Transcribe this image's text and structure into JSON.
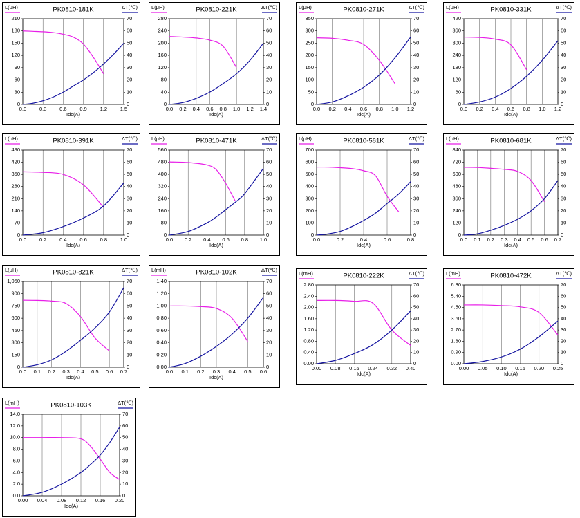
{
  "chart_data": [
    {
      "type": "line",
      "title": "PK0810-181K",
      "xlabel": "Idc(A)",
      "grid": true,
      "x": [
        0,
        0.15,
        0.3,
        0.45,
        0.6,
        0.75,
        0.9,
        1.05,
        1.2,
        1.35,
        1.5
      ],
      "xlim": [
        0,
        1.5
      ],
      "xticks": [
        {
          "value": 0,
          "label": "0.0"
        },
        0.3,
        0.6,
        0.9,
        1.2,
        1.5
      ],
      "ylim": [
        0,
        210
      ],
      "yticks": [
        0,
        30,
        60,
        90,
        120,
        150,
        180,
        210
      ],
      "y2lim": [
        0,
        70
      ],
      "y2ticks": [
        0,
        10,
        20,
        30,
        40,
        50,
        60,
        70
      ],
      "series": [
        {
          "name": "L(μH)",
          "color": "#e81ee8",
          "values": [
            180,
            179,
            178,
            176,
            172,
            165,
            148,
            115,
            75,
            null,
            null
          ]
        },
        {
          "name": "ΔT(℃)",
          "color": "#1414a0",
          "axis": "y2",
          "values": [
            0,
            1,
            3,
            6,
            10,
            15,
            20,
            26,
            33,
            41,
            50
          ]
        }
      ]
    },
    {
      "type": "line",
      "title": "PK0810-221K",
      "xlabel": "Idc(A)",
      "grid": true,
      "x": [
        0,
        0.2,
        0.4,
        0.6,
        0.8,
        1.0,
        1.2,
        1.4
      ],
      "xlim": [
        0,
        1.4
      ],
      "xticks": [
        {
          "value": 0,
          "label": "0.0"
        },
        0.2,
        0.4,
        0.6,
        0.8,
        {
          "value": 1,
          "label": "1.0"
        },
        1.2,
        1.4
      ],
      "ylim": [
        0,
        280
      ],
      "yticks": [
        0,
        40,
        80,
        120,
        160,
        200,
        240,
        280
      ],
      "y2lim": [
        0,
        70
      ],
      "y2ticks": [
        0,
        10,
        20,
        30,
        40,
        50,
        60,
        70
      ],
      "series": [
        {
          "name": "L(μH)",
          "color": "#e81ee8",
          "values": [
            222,
            220,
            217,
            210,
            190,
            120,
            null,
            null
          ]
        },
        {
          "name": "ΔT(℃)",
          "color": "#1414a0",
          "axis": "y2",
          "values": [
            0,
            1.5,
            5,
            10,
            17,
            25,
            36,
            50
          ]
        }
      ]
    },
    {
      "type": "line",
      "title": "PK0810-271K",
      "xlabel": "Idc(A)",
      "grid": true,
      "x": [
        0,
        0.2,
        0.4,
        0.6,
        0.8,
        1.0,
        1.2
      ],
      "xlim": [
        0,
        1.2
      ],
      "xticks": [
        {
          "value": 0,
          "label": "0.0"
        },
        0.2,
        0.4,
        0.6,
        0.8,
        {
          "value": 1,
          "label": "1.0"
        },
        1.2
      ],
      "ylim": [
        0,
        350
      ],
      "yticks": [
        0,
        50,
        100,
        150,
        200,
        250,
        300,
        350
      ],
      "y2lim": [
        0,
        70
      ],
      "y2ticks": [
        0,
        10,
        20,
        30,
        40,
        50,
        60,
        70
      ],
      "series": [
        {
          "name": "L(μH)",
          "color": "#e81ee8",
          "values": [
            272,
            270,
            262,
            245,
            180,
            85,
            null
          ]
        },
        {
          "name": "ΔT(℃)",
          "color": "#1414a0",
          "axis": "y2",
          "values": [
            0,
            2,
            7,
            14,
            24,
            38,
            55
          ]
        }
      ]
    },
    {
      "type": "line",
      "title": "PK0810-331K",
      "xlabel": "Idc(A)",
      "grid": true,
      "x": [
        0,
        0.2,
        0.4,
        0.6,
        0.8,
        1.0,
        1.2
      ],
      "xlim": [
        0,
        1.2
      ],
      "xticks": [
        {
          "value": 0,
          "label": "0.0"
        },
        0.2,
        0.4,
        0.6,
        0.8,
        {
          "value": 1,
          "label": "1.0"
        },
        1.2
      ],
      "ylim": [
        0,
        420
      ],
      "yticks": [
        0,
        60,
        120,
        180,
        240,
        300,
        360,
        420
      ],
      "y2lim": [
        0,
        70
      ],
      "y2ticks": [
        0,
        10,
        20,
        30,
        40,
        50,
        60,
        70
      ],
      "series": [
        {
          "name": "L(μH)",
          "color": "#e81ee8",
          "values": [
            330,
            328,
            320,
            292,
            170,
            null,
            null
          ]
        },
        {
          "name": "ΔT(℃)",
          "color": "#1414a0",
          "axis": "y2",
          "values": [
            0,
            2,
            6,
            13,
            23,
            36,
            52
          ]
        }
      ]
    },
    {
      "type": "line",
      "title": "PK0810-391K",
      "xlabel": "Idc(A)",
      "grid": true,
      "x": [
        0,
        0.2,
        0.4,
        0.6,
        0.8,
        1.0
      ],
      "xlim": [
        0,
        1
      ],
      "xticks": [
        {
          "value": 0,
          "label": "0.0"
        },
        0.2,
        0.4,
        0.6,
        0.8,
        {
          "value": 1,
          "label": "1.0"
        }
      ],
      "ylim": [
        0,
        490
      ],
      "yticks": [
        0,
        70,
        140,
        210,
        280,
        350,
        420,
        490
      ],
      "y2lim": [
        0,
        70
      ],
      "y2ticks": [
        0,
        10,
        20,
        30,
        40,
        50,
        60,
        70
      ],
      "series": [
        {
          "name": "L(μH)",
          "color": "#e81ee8",
          "values": [
            365,
            362,
            350,
            290,
            160,
            null
          ]
        },
        {
          "name": "ΔT(℃)",
          "color": "#1414a0",
          "axis": "y2",
          "values": [
            0,
            2,
            7,
            14,
            24,
            43
          ]
        }
      ]
    },
    {
      "type": "line",
      "title": "PK0810-471K",
      "xlabel": "Idc(A)",
      "grid": true,
      "x": [
        0,
        0.2,
        0.4,
        0.5,
        0.6,
        0.7,
        0.8,
        1.0
      ],
      "xlim": [
        0,
        1
      ],
      "xticks": [
        {
          "value": 0,
          "label": "0.0"
        },
        0.2,
        0.4,
        0.6,
        0.8,
        {
          "value": 1,
          "label": "1.0"
        }
      ],
      "ylim": [
        0,
        560
      ],
      "yticks": [
        0,
        80,
        160,
        240,
        320,
        400,
        480,
        560
      ],
      "y2lim": [
        0,
        70
      ],
      "y2ticks": [
        0,
        10,
        20,
        30,
        40,
        50,
        60,
        70
      ],
      "series": [
        {
          "name": "L(μH)",
          "color": "#e81ee8",
          "values": [
            482,
            478,
            462,
            430,
            340,
            225,
            null,
            null
          ]
        },
        {
          "name": "ΔT(℃)",
          "color": "#1414a0",
          "axis": "y2",
          "values": [
            0,
            3,
            10,
            15,
            21,
            27,
            34,
            55
          ]
        }
      ]
    },
    {
      "type": "line",
      "title": "PK0810-561K",
      "xlabel": "Idc(A)",
      "grid": true,
      "x": [
        0,
        0.1,
        0.2,
        0.3,
        0.4,
        0.5,
        0.6,
        0.7,
        0.8
      ],
      "xlim": [
        0,
        0.8
      ],
      "xticks": [
        {
          "value": 0,
          "label": "0.0"
        },
        0.2,
        0.4,
        0.6,
        0.8
      ],
      "ylim": [
        0,
        700
      ],
      "yticks": [
        0,
        100,
        200,
        300,
        400,
        500,
        600,
        700
      ],
      "y2lim": [
        0,
        70
      ],
      "y2ticks": [
        0,
        10,
        20,
        30,
        40,
        50,
        60,
        70
      ],
      "series": [
        {
          "name": "L(μH)",
          "color": "#e81ee8",
          "values": [
            560,
            560,
            555,
            548,
            530,
            490,
            320,
            190,
            null
          ]
        },
        {
          "name": "ΔT(℃)",
          "color": "#1414a0",
          "axis": "y2",
          "values": [
            0,
            1,
            3,
            7,
            12,
            18,
            26,
            34,
            44
          ]
        }
      ]
    },
    {
      "type": "line",
      "title": "PK0810-681K",
      "xlabel": "Idc(A)",
      "grid": true,
      "x": [
        0,
        0.1,
        0.2,
        0.3,
        0.4,
        0.5,
        0.6,
        0.7
      ],
      "xlim": [
        0,
        0.7
      ],
      "xticks": [
        {
          "value": 0,
          "label": "0.0"
        },
        0.1,
        0.2,
        0.3,
        0.4,
        0.5,
        0.6,
        0.7
      ],
      "ylim": [
        0,
        840
      ],
      "yticks": [
        0,
        120,
        240,
        360,
        480,
        600,
        720,
        840
      ],
      "y2lim": [
        0,
        70
      ],
      "y2ticks": [
        0,
        10,
        20,
        30,
        40,
        50,
        60,
        70
      ],
      "series": [
        {
          "name": "L(μH)",
          "color": "#e81ee8",
          "values": [
            670,
            668,
            660,
            650,
            630,
            540,
            330,
            null
          ]
        },
        {
          "name": "ΔT(℃)",
          "color": "#1414a0",
          "axis": "y2",
          "values": [
            0,
            1,
            4,
            8,
            13,
            20,
            30,
            45
          ]
        }
      ]
    },
    {
      "type": "line",
      "title": "PK0810-821K",
      "xlabel": "Idc(A)",
      "grid": true,
      "x": [
        0,
        0.1,
        0.2,
        0.3,
        0.4,
        0.5,
        0.6,
        0.7
      ],
      "xlim": [
        0,
        0.7
      ],
      "xticks": [
        {
          "value": 0,
          "label": "0.0"
        },
        0.1,
        0.2,
        0.3,
        0.4,
        0.5,
        0.6,
        0.7
      ],
      "ylim": [
        0,
        1050
      ],
      "yticks": [
        0,
        150,
        300,
        450,
        600,
        750,
        900,
        {
          "value": 1050,
          "label": "1,050"
        }
      ],
      "y2lim": [
        0,
        70
      ],
      "y2ticks": [
        0,
        10,
        20,
        30,
        40,
        50,
        60,
        70
      ],
      "series": [
        {
          "name": "L(μH)",
          "color": "#e81ee8",
          "values": [
            820,
            818,
            810,
            780,
            620,
            360,
            200,
            null
          ]
        },
        {
          "name": "ΔT(℃)",
          "color": "#1414a0",
          "axis": "y2",
          "values": [
            0,
            2,
            6,
            13,
            22,
            32,
            45,
            65
          ]
        }
      ]
    },
    {
      "type": "line",
      "title": "PK0810-102K",
      "xlabel": "Idc(A)",
      "grid": true,
      "x": [
        0,
        0.1,
        0.2,
        0.3,
        0.4,
        0.5,
        0.6
      ],
      "xlim": [
        0,
        0.6
      ],
      "xticks": [
        {
          "value": 0,
          "label": "0.0"
        },
        0.1,
        0.2,
        0.3,
        0.4,
        0.5,
        0.6
      ],
      "ylim": [
        0,
        1.4
      ],
      "yticks": [
        {
          "value": 0,
          "label": "0.00"
        },
        {
          "value": 0.2,
          "label": "0.20"
        },
        {
          "value": 0.4,
          "label": "0.40"
        },
        {
          "value": 0.6,
          "label": "0.60"
        },
        {
          "value": 0.8,
          "label": "0.80"
        },
        {
          "value": 1,
          "label": "1.00"
        },
        {
          "value": 1.2,
          "label": "1.20"
        },
        {
          "value": 1.4,
          "label": "1.40"
        }
      ],
      "y2lim": [
        0,
        70
      ],
      "y2ticks": [
        0,
        10,
        20,
        30,
        40,
        50,
        60,
        70
      ],
      "series": [
        {
          "name": "L(mH)",
          "color": "#e81ee8",
          "values": [
            1.0,
            1.0,
            0.99,
            0.96,
            0.8,
            0.42,
            null
          ]
        },
        {
          "name": "ΔT(℃)",
          "color": "#1414a0",
          "axis": "y2",
          "values": [
            0,
            3,
            9,
            17,
            27,
            40,
            57
          ]
        }
      ]
    },
    {
      "type": "line",
      "title": "PK0810-222K",
      "xlabel": "Idc(A)",
      "grid": true,
      "x": [
        0,
        0.08,
        0.16,
        0.24,
        0.32,
        0.4
      ],
      "xlim": [
        0,
        0.4
      ],
      "xticks": [
        {
          "value": 0,
          "label": "0.00"
        },
        0.08,
        0.16,
        0.24,
        0.32,
        {
          "value": 0.4,
          "label": "0.40"
        }
      ],
      "ylim": [
        0,
        2.8
      ],
      "yticks": [
        {
          "value": 0,
          "label": "0.00"
        },
        {
          "value": 0.4,
          "label": "0.40"
        },
        {
          "value": 0.8,
          "label": "0.80"
        },
        {
          "value": 1.2,
          "label": "1.20"
        },
        {
          "value": 1.6,
          "label": "1.60"
        },
        {
          "value": 2,
          "label": "2.00"
        },
        {
          "value": 2.4,
          "label": "2.40"
        },
        {
          "value": 2.8,
          "label": "2.80"
        }
      ],
      "y2lim": [
        0,
        70
      ],
      "y2ticks": [
        0,
        10,
        20,
        30,
        40,
        50,
        60,
        70
      ],
      "series": [
        {
          "name": "L(mH)",
          "color": "#e81ee8",
          "values": [
            2.25,
            2.25,
            2.22,
            2.15,
            1.2,
            0.65
          ]
        },
        {
          "name": "ΔT(℃)",
          "color": "#1414a0",
          "axis": "y2",
          "values": [
            0,
            3,
            9,
            17,
            30,
            47
          ]
        }
      ]
    },
    {
      "type": "line",
      "title": "PK0810-472K",
      "xlabel": "Idc(A)",
      "grid": true,
      "x": [
        0,
        0.05,
        0.1,
        0.15,
        0.2,
        0.25
      ],
      "xlim": [
        0,
        0.25
      ],
      "xticks": [
        {
          "value": 0,
          "label": "0.00"
        },
        0.05,
        {
          "value": 0.1,
          "label": "0.10"
        },
        0.15,
        {
          "value": 0.2,
          "label": "0.20"
        },
        0.25
      ],
      "ylim": [
        0,
        6.3
      ],
      "yticks": [
        {
          "value": 0,
          "label": "0.00"
        },
        {
          "value": 0.9,
          "label": "0.90"
        },
        {
          "value": 1.8,
          "label": "1.80"
        },
        {
          "value": 2.7,
          "label": "2.70"
        },
        {
          "value": 3.6,
          "label": "3.60"
        },
        {
          "value": 4.5,
          "label": "4.50"
        },
        {
          "value": 5.4,
          "label": "5.40"
        },
        {
          "value": 6.3,
          "label": "6.30"
        }
      ],
      "y2lim": [
        0,
        70
      ],
      "y2ticks": [
        0,
        10,
        20,
        30,
        40,
        50,
        60,
        70
      ],
      "series": [
        {
          "name": "L(mH)",
          "color": "#e81ee8",
          "values": [
            4.7,
            4.7,
            4.65,
            4.55,
            4.1,
            2.3
          ]
        },
        {
          "name": "ΔT(℃)",
          "color": "#1414a0",
          "axis": "y2",
          "values": [
            0,
            2,
            6,
            13,
            24,
            38
          ]
        }
      ]
    },
    {
      "type": "line",
      "title": "PK0810-103K",
      "xlabel": "Idc(A)",
      "grid": true,
      "x": [
        0,
        0.04,
        0.08,
        0.12,
        0.14,
        0.16,
        0.18,
        0.2
      ],
      "xlim": [
        0,
        0.2
      ],
      "xticks": [
        {
          "value": 0,
          "label": "0.00"
        },
        0.04,
        0.08,
        0.12,
        0.16,
        {
          "value": 0.2,
          "label": "0.20"
        }
      ],
      "ylim": [
        0,
        14
      ],
      "yticks": [
        {
          "value": 0,
          "label": "0.0"
        },
        {
          "value": 2,
          "label": "2.0"
        },
        {
          "value": 4,
          "label": "4.0"
        },
        {
          "value": 6,
          "label": "6.0"
        },
        {
          "value": 8,
          "label": "8.0"
        },
        {
          "value": 10,
          "label": "10.0"
        },
        {
          "value": 12,
          "label": "12.0"
        },
        {
          "value": 14,
          "label": "14.0"
        }
      ],
      "y2lim": [
        0,
        70
      ],
      "y2ticks": [
        0,
        10,
        20,
        30,
        40,
        50,
        60,
        70
      ],
      "series": [
        {
          "name": "L(mH)",
          "color": "#e81ee8",
          "values": [
            10,
            10,
            10,
            9.8,
            8.5,
            6.3,
            4.0,
            2.8
          ]
        },
        {
          "name": "ΔT(℃)",
          "color": "#1414a0",
          "axis": "y2",
          "values": [
            0,
            3,
            10,
            20,
            27,
            35,
            46,
            59
          ]
        }
      ]
    }
  ]
}
